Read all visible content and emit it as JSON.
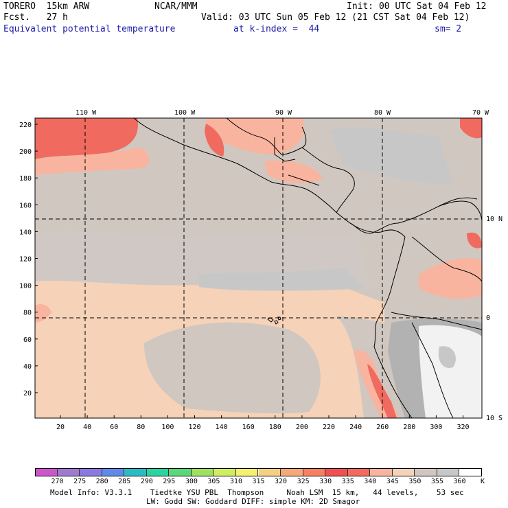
{
  "header": {
    "model": "TORERO  15km ARW",
    "org": "NCAR/MMM",
    "init": "Init: 00 UTC Sat 04 Feb 12",
    "fcst": "Fcst.   27 h",
    "valid": "Valid: 03 UTC Sun 05 Feb 12 (21 CST Sat 04 Feb 12)",
    "field": "Equivalent potential temperature",
    "level": "at k-index =  44",
    "smooth": "sm= 2"
  },
  "colors": {
    "header_blue": "#1a1aa8",
    "grey_low": "#c7c7c7",
    "grey_mid": "#d0c7c0",
    "peach": "#f5d2b8",
    "salmon": "#f9b49f",
    "coral": "#f58a7a",
    "red": "#f06a60",
    "white": "#f2f2f2",
    "land_grey": "#b2b2b2"
  },
  "map": {
    "top_lon_labels": [
      "110 W",
      "100 W",
      "90 W",
      "80 W",
      "70 W"
    ],
    "right_lat_labels": [
      "10 N",
      "0",
      "10 S"
    ],
    "left_y_ticks": [
      "220",
      "200",
      "180",
      "160",
      "140",
      "120",
      "100",
      "80",
      "60",
      "40",
      "20"
    ],
    "bottom_x_ticks": [
      "20",
      "40",
      "60",
      "80",
      "100",
      "120",
      "140",
      "160",
      "180",
      "200",
      "220",
      "240",
      "260",
      "280",
      "300",
      "320"
    ]
  },
  "colorbar": {
    "colors": [
      "#cc55cc",
      "#a07ad0",
      "#8a7ae0",
      "#5f8ae8",
      "#2abcc4",
      "#2ad4a0",
      "#58d878",
      "#a0e060",
      "#d0ec60",
      "#f4f070",
      "#f4d080",
      "#f8a878",
      "#f68060",
      "#f05050",
      "#f46a60",
      "#f9b49f",
      "#f5d2b8",
      "#d0c7c0",
      "#c7c7c7",
      "#ffffff"
    ],
    "labels": [
      "270",
      "275",
      "280",
      "285",
      "290",
      "295",
      "300",
      "305",
      "310",
      "315",
      "320",
      "325",
      "330",
      "335",
      "340",
      "345",
      "350",
      "355",
      "360"
    ],
    "unit": "K"
  },
  "footer": {
    "line1": "Model Info: V3.3.1    Tiedtke YSU PBL  Thompson     Noah LSM  15 km,   44 levels,    53 sec",
    "line2": "LW: Godd SW: Goddard DIFF: simple KM: 2D Smagor"
  }
}
